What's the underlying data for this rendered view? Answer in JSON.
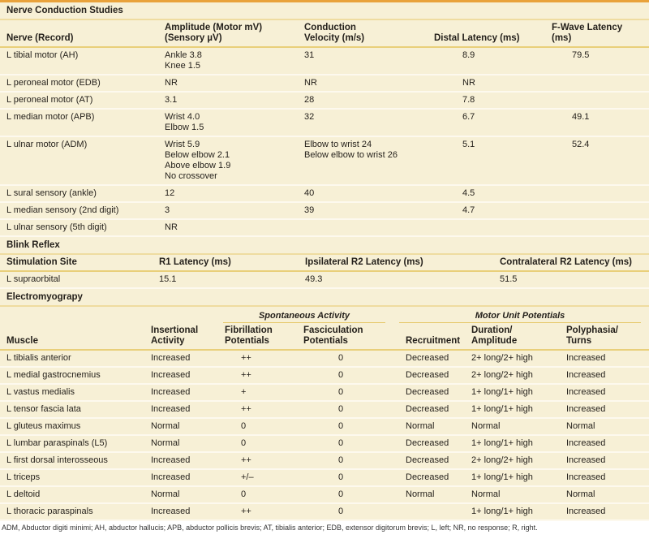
{
  "ncs": {
    "title": "Nerve Conduction Studies",
    "headers": [
      "Nerve (Record)",
      "Amplitude (Motor mV)\n(Sensory µV)",
      "Conduction\nVelocity (m/s)",
      "Distal Latency (ms)",
      "F-Wave Latency\n(ms)"
    ],
    "rows": [
      [
        "L tibial motor (AH)",
        "Ankle 3.8\nKnee 1.5",
        "31",
        "8.9",
        "79.5"
      ],
      [
        "L peroneal motor (EDB)",
        "NR",
        "NR",
        "NR",
        ""
      ],
      [
        "L peroneal motor (AT)",
        "3.1",
        "28",
        "7.8",
        ""
      ],
      [
        "L median motor (APB)",
        "Wrist 4.0\nElbow 1.5",
        "32",
        "6.7",
        "49.1"
      ],
      [
        "L ulnar motor (ADM)",
        "Wrist 5.9\nBelow elbow 2.1\nAbove elbow 1.9\nNo crossover",
        "Elbow to wrist 24\nBelow elbow to wrist 26",
        "5.1",
        "52.4"
      ],
      [
        "L sural sensory (ankle)",
        "12",
        "40",
        "4.5",
        ""
      ],
      [
        "L median sensory (2nd digit)",
        "3",
        "39",
        "4.7",
        ""
      ],
      [
        "L ulnar sensory (5th digit)",
        "NR",
        "",
        "",
        ""
      ]
    ]
  },
  "blink": {
    "title": "Blink Reflex",
    "headers": [
      "Stimulation Site",
      "R1 Latency (ms)",
      "Ipsilateral R2 Latency (ms)",
      "Contralateral R2 Latency (ms)"
    ],
    "rows": [
      [
        "L supraorbital",
        "15.1",
        "49.3",
        "51.5"
      ]
    ]
  },
  "emg": {
    "title": "Electromyograpy",
    "groups": [
      "Spontaneous Activity",
      "Motor Unit Potentials"
    ],
    "headers": [
      "Muscle",
      "Insertional\nActivity",
      "Fibrillation\nPotentials",
      "Fasciculation\nPotentials",
      "Recruitment",
      "Duration/\nAmplitude",
      "Polyphasia/\nTurns"
    ],
    "rows": [
      [
        "L tibialis anterior",
        "Increased",
        "++",
        "0",
        "Decreased",
        "2+ long/2+ high",
        "Increased"
      ],
      [
        "L medial gastrocnemius",
        "Increased",
        "++",
        "0",
        "Decreased",
        "2+ long/2+ high",
        "Increased"
      ],
      [
        "L vastus medialis",
        "Increased",
        "+",
        "0",
        "Decreased",
        "1+ long/1+ high",
        "Increased"
      ],
      [
        "L tensor fascia lata",
        "Increased",
        "++",
        "0",
        "Decreased",
        "1+ long/1+ high",
        "Increased"
      ],
      [
        "L gluteus maximus",
        "Normal",
        "0",
        "0",
        "Normal",
        "Normal",
        "Normal"
      ],
      [
        "L lumbar paraspinals (L5)",
        "Normal",
        "0",
        "0",
        "Decreased",
        "1+ long/1+ high",
        "Increased"
      ],
      [
        "L first dorsal interosseous",
        "Increased",
        "++",
        "0",
        "Decreased",
        "2+ long/2+ high",
        "Increased"
      ],
      [
        "L triceps",
        "Increased",
        "+/–",
        "0",
        "Decreased",
        "1+ long/1+ high",
        "Increased"
      ],
      [
        "L deltoid",
        "Normal",
        "0",
        "0",
        "Normal",
        "Normal",
        "Normal"
      ],
      [
        "L thoracic paraspinals",
        "Increased",
        "++",
        "0",
        "",
        "1+ long/1+ high",
        "Increased"
      ]
    ]
  },
  "footnote": "ADM, Abductor digiti minimi; AH, abductor hallucis; APB, abductor pollicis brevis; AT, tibialis anterior; EDB, extensor digitorum brevis; L, left; NR, no response; R, right.",
  "colors": {
    "background": "#f7f0d6",
    "rule": "#e9a23b",
    "header_rule": "#e9cf7a"
  }
}
